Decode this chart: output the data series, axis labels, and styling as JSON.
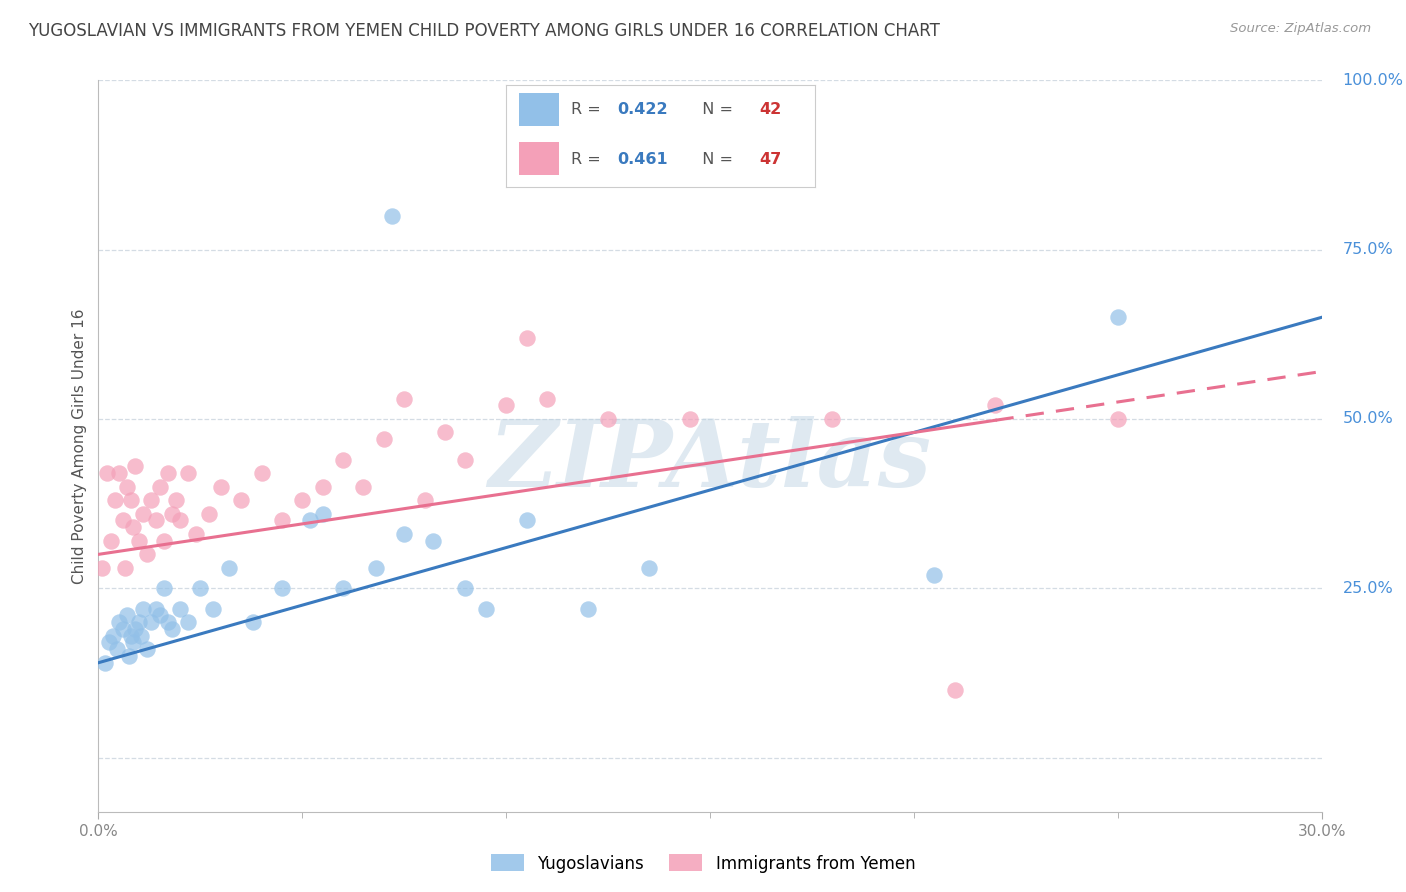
{
  "title": "YUGOSLAVIAN VS IMMIGRANTS FROM YEMEN CHILD POVERTY AMONG GIRLS UNDER 16 CORRELATION CHART",
  "source": "Source: ZipAtlas.com",
  "ylabel": "Child Poverty Among Girls Under 16",
  "xmin": 0.0,
  "xmax": 30.0,
  "ymin": -8.0,
  "ymax": 100.0,
  "yticks_right": [
    0,
    25.0,
    50.0,
    75.0,
    100.0
  ],
  "ytick_labels_right": [
    "",
    "25.0%",
    "50.0%",
    "75.0%",
    "100.0%"
  ],
  "xtick_positions": [
    0,
    30
  ],
  "xtick_labels": [
    "0.0%",
    "30.0%"
  ],
  "legend_labels_bottom": [
    "Yugoslavians",
    "Immigrants from Yemen"
  ],
  "blue_color": "#92c0e8",
  "pink_color": "#f4a0b8",
  "blue_line_color": "#3a7abf",
  "pink_line_color": "#e87090",
  "watermark": "ZIPAtlas",
  "background_color": "#ffffff",
  "grid_color": "#d4dce4",
  "blue_x": [
    0.15,
    0.25,
    0.35,
    0.45,
    0.5,
    0.6,
    0.7,
    0.75,
    0.8,
    0.85,
    0.9,
    1.0,
    1.05,
    1.1,
    1.2,
    1.3,
    1.4,
    1.5,
    1.6,
    1.7,
    1.8,
    2.0,
    2.2,
    2.5,
    2.8,
    3.2,
    3.8,
    4.5,
    5.2,
    6.0,
    6.8,
    7.5,
    8.2,
    9.0,
    10.5,
    12.0,
    13.5,
    5.5,
    7.2,
    9.5,
    20.5,
    25.0
  ],
  "blue_y": [
    14,
    17,
    18,
    16,
    20,
    19,
    21,
    15,
    18,
    17,
    19,
    20,
    18,
    22,
    16,
    20,
    22,
    21,
    25,
    20,
    19,
    22,
    20,
    25,
    22,
    28,
    20,
    25,
    35,
    25,
    28,
    33,
    32,
    25,
    35,
    22,
    28,
    36,
    80,
    22,
    27,
    65
  ],
  "pink_x": [
    0.1,
    0.2,
    0.3,
    0.4,
    0.5,
    0.6,
    0.65,
    0.7,
    0.8,
    0.85,
    0.9,
    1.0,
    1.1,
    1.2,
    1.3,
    1.4,
    1.5,
    1.6,
    1.7,
    1.8,
    1.9,
    2.0,
    2.2,
    2.4,
    2.7,
    3.0,
    3.5,
    4.0,
    4.5,
    5.0,
    5.5,
    6.0,
    6.5,
    7.0,
    7.5,
    8.0,
    8.5,
    9.0,
    10.0,
    10.5,
    11.0,
    12.5,
    14.5,
    18.0,
    21.0,
    22.0,
    25.0
  ],
  "pink_y": [
    28,
    42,
    32,
    38,
    42,
    35,
    28,
    40,
    38,
    34,
    43,
    32,
    36,
    30,
    38,
    35,
    40,
    32,
    42,
    36,
    38,
    35,
    42,
    33,
    36,
    40,
    38,
    42,
    35,
    38,
    40,
    44,
    40,
    47,
    53,
    38,
    48,
    44,
    52,
    62,
    53,
    50,
    50,
    50,
    10,
    52,
    50
  ],
  "blue_line_x0": 0.0,
  "blue_line_y0": 14.0,
  "blue_line_x1": 30.0,
  "blue_line_y1": 65.0,
  "pink_line_x0": 0.0,
  "pink_line_y0": 30.0,
  "pink_line_x1": 30.0,
  "pink_line_y1": 57.0,
  "pink_dash_start_x": 22.0
}
